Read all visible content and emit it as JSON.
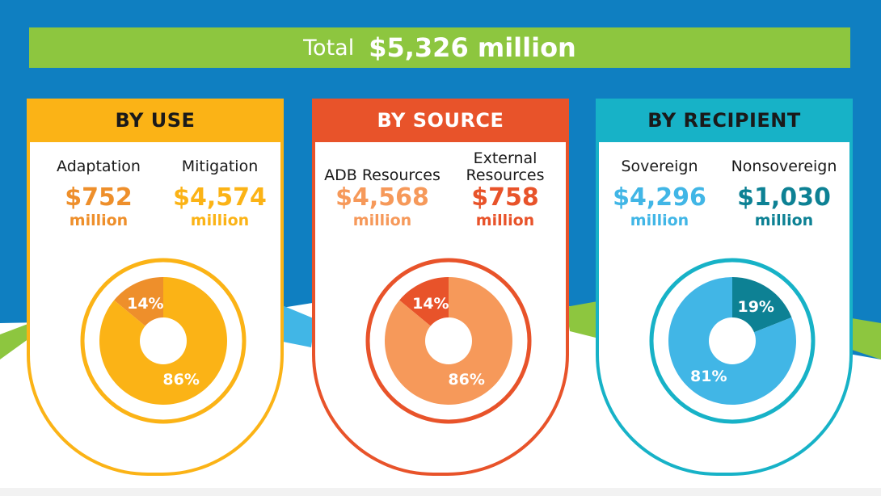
{
  "total": {
    "label": "Total",
    "value": "$5,326 million"
  },
  "colors": {
    "background": "#0f7fc1",
    "green": "#8dc63f",
    "yellow": "#fbb316",
    "orange": "#e8532a",
    "teal": "#17b2c7"
  },
  "cards": [
    {
      "title": "BY USE",
      "items": [
        {
          "name": "Adaptation",
          "amount": "$752",
          "unit": "million",
          "color": "#ee8f2b"
        },
        {
          "name": "Mitigation",
          "amount": "$4,574",
          "unit": "million",
          "color": "#fbb316"
        }
      ]
    },
    {
      "title": "BY SOURCE",
      "items": [
        {
          "name": "ADB Resources",
          "amount": "$4,568",
          "unit": "million",
          "color": "#f6995a"
        },
        {
          "name": "External Resources",
          "amount": "$758",
          "unit": "million",
          "color": "#e8532a"
        }
      ]
    },
    {
      "title": "BY RECIPIENT",
      "items": [
        {
          "name": "Sovereign",
          "amount": "$4,296",
          "unit": "million",
          "color": "#41b6e6"
        },
        {
          "name": "Nonsovereign",
          "amount": "$1,030",
          "unit": "million",
          "color": "#0d8194"
        }
      ]
    }
  ],
  "chart_data": [
    {
      "type": "pie",
      "categories": [
        "Adaptation",
        "Mitigation"
      ],
      "values": [
        14,
        86
      ],
      "labels": [
        "14%",
        "86%"
      ],
      "colors": [
        "#ee8f2b",
        "#fbb316"
      ],
      "ring_color": "#fbb316"
    },
    {
      "type": "pie",
      "categories": [
        "External Resources",
        "ADB Resources"
      ],
      "values": [
        14,
        86
      ],
      "labels": [
        "14%",
        "86%"
      ],
      "colors": [
        "#e8532a",
        "#f6995a"
      ],
      "ring_color": "#e8532a"
    },
    {
      "type": "pie",
      "categories": [
        "Nonsovereign",
        "Sovereign"
      ],
      "values": [
        19,
        81
      ],
      "labels": [
        "19%",
        "81%"
      ],
      "colors": [
        "#0d8194",
        "#41b6e6"
      ],
      "ring_color": "#17b2c7"
    }
  ]
}
